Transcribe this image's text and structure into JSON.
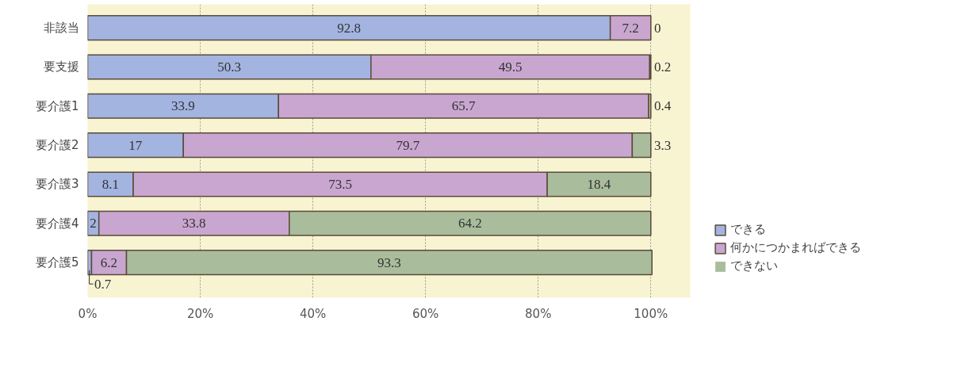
{
  "chart_data": {
    "type": "bar",
    "orientation": "horizontal",
    "stacked": true,
    "categories": [
      "非該当",
      "要支援",
      "要介護1",
      "要介護2",
      "要介護3",
      "要介護4",
      "要介護5"
    ],
    "series": [
      {
        "name": "できる",
        "color": "#a3b4e0",
        "values": [
          92.8,
          50.3,
          33.9,
          17,
          8.1,
          2,
          0.7
        ]
      },
      {
        "name": "何かにつかまればできる",
        "color": "#c9a6cf",
        "values": [
          7.2,
          49.5,
          65.7,
          79.7,
          73.5,
          33.8,
          6.2
        ]
      },
      {
        "name": "できない",
        "color": "#a9bc9c",
        "values": [
          0,
          0.2,
          0.4,
          3.3,
          18.4,
          64.2,
          93.3
        ]
      }
    ],
    "xlim": [
      0,
      107
    ],
    "xticks": [
      {
        "value": 0,
        "label": "0%"
      },
      {
        "value": 20,
        "label": "20%"
      },
      {
        "value": 40,
        "label": "40%"
      },
      {
        "value": 60,
        "label": "60%"
      },
      {
        "value": 80,
        "label": "80%"
      },
      {
        "value": 100,
        "label": "100%"
      }
    ],
    "grid": "x",
    "legend": "right",
    "data_labels": true
  }
}
